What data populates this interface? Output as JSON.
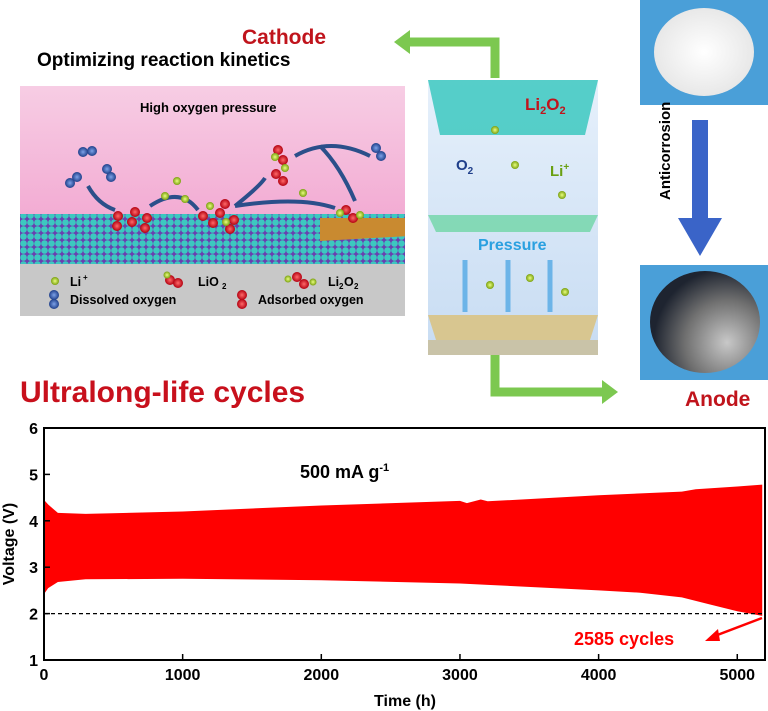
{
  "cathode": {
    "title": "Cathode",
    "subtitle": "Optimizing reaction kinetics"
  },
  "diagram": {
    "caption": "High oxygen pressure",
    "legend": [
      {
        "label": "Li",
        "sup": "+"
      },
      {
        "label": "LiO",
        "sub": "2"
      },
      {
        "label": "Li",
        "sub": "2",
        "label2": "O",
        "sub2": "2"
      },
      {
        "label": "Dissolved oxygen"
      },
      {
        "label": "Adsorbed oxygen"
      }
    ],
    "colors": {
      "li": "#a8d21a",
      "dissolved_o2": "#2f5aa8",
      "adsorbed_o": "#d4141c",
      "substrate": "#3cc8c0",
      "bg": "#f6c3e0"
    }
  },
  "cell": {
    "product": "Li2O2",
    "o2": "O",
    "o2_sub": "2",
    "li": "Li",
    "li_sup": "+",
    "pressure": "Pressure"
  },
  "anode": {
    "label": "Anode",
    "arrow_label": "Anticorrosion"
  },
  "section_title": "Ultralong-life cycles",
  "chart_data": {
    "type": "area",
    "annotation_current": "500 mA g",
    "annotation_current_sup": "-1",
    "annotation_cycles": "2585 cycles",
    "xlabel": "Time (h)",
    "ylabel": "Voltage (V)",
    "xlim": [
      0,
      5200
    ],
    "ylim": [
      1,
      6
    ],
    "xticks": [
      0,
      1000,
      2000,
      3000,
      4000,
      5000
    ],
    "yticks": [
      1,
      2,
      3,
      4,
      5,
      6
    ],
    "cutoff_voltage": 2,
    "color": "#ff0000",
    "upper": {
      "x": [
        0,
        30,
        100,
        300,
        1000,
        2000,
        3000,
        3050,
        3150,
        3200,
        4000,
        4600,
        4700,
        5000,
        5180
      ],
      "y": [
        4.45,
        4.35,
        4.17,
        4.15,
        4.2,
        4.33,
        4.43,
        4.38,
        4.46,
        4.42,
        4.55,
        4.63,
        4.68,
        4.74,
        4.78
      ]
    },
    "lower": {
      "x": [
        0,
        30,
        100,
        300,
        1000,
        2000,
        3000,
        3200,
        4000,
        4300,
        4600,
        4800,
        5000,
        5180
      ],
      "y": [
        2.42,
        2.55,
        2.68,
        2.74,
        2.75,
        2.72,
        2.65,
        2.62,
        2.5,
        2.45,
        2.35,
        2.2,
        2.05,
        1.95
      ]
    }
  }
}
